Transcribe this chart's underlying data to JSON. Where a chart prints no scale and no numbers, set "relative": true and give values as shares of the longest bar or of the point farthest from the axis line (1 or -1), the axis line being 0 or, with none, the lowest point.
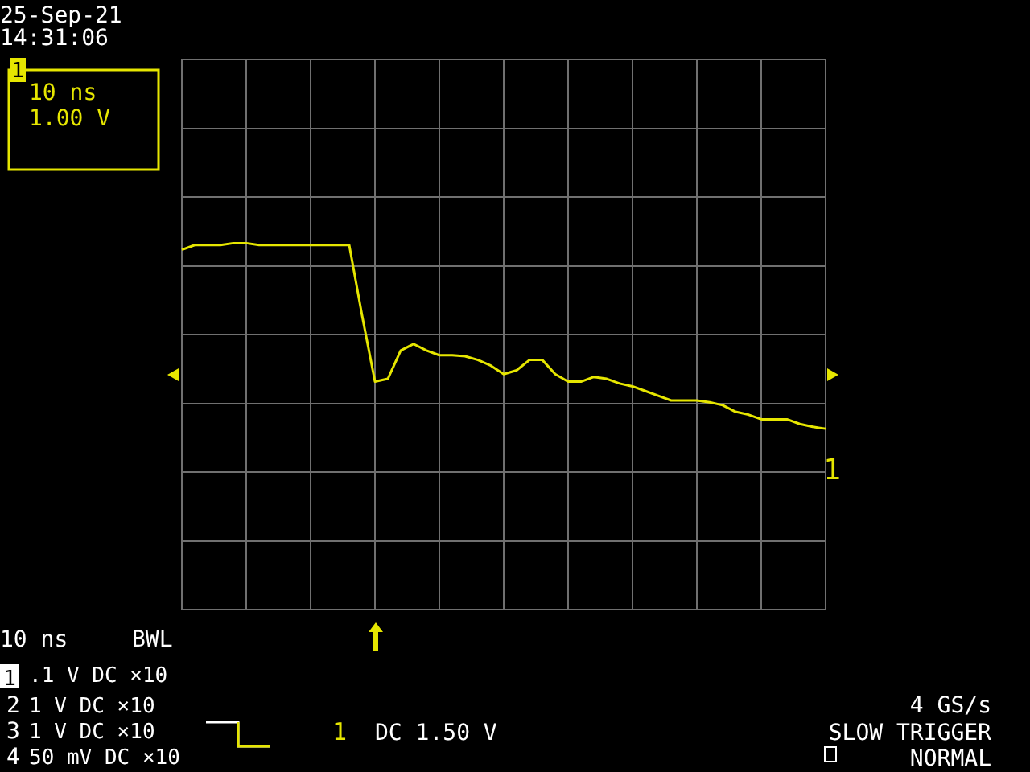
{
  "chart_data": {
    "type": "line",
    "relative": true,
    "grid": true,
    "tick_labels": false,
    "marker": "none",
    "legend": false,
    "categories": [
      null,
      null,
      null,
      null,
      null,
      null,
      null,
      null,
      null,
      null,
      null,
      null,
      null,
      null,
      null,
      null,
      null,
      null,
      null,
      null,
      null,
      null,
      null,
      null,
      null,
      null,
      null,
      null,
      null,
      null,
      null,
      null,
      null,
      null,
      null,
      null,
      null,
      null,
      null,
      null,
      null,
      null,
      null,
      null,
      null,
      null,
      null,
      null,
      null,
      null,
      null
    ],
    "series": [
      {
        "color": "#e6e600",
        "values": [
          0.9,
          0.95,
          0.95,
          0.95,
          0.97,
          0.97,
          0.95,
          0.95,
          0.95,
          0.95,
          0.95,
          0.95,
          0.95,
          0.95,
          0.2,
          -0.5,
          -0.47,
          -0.17,
          -0.1,
          -0.17,
          -0.22,
          -0.22,
          -0.23,
          -0.27,
          -0.33,
          -0.42,
          -0.38,
          -0.27,
          -0.27,
          -0.42,
          -0.5,
          -0.5,
          -0.45,
          -0.47,
          -0.52,
          -0.55,
          -0.6,
          -0.65,
          -0.7,
          -0.7,
          -0.7,
          -0.72,
          -0.75,
          -0.82,
          -0.85,
          -0.9,
          -0.9,
          -0.9,
          -0.95,
          -0.98,
          -1
        ]
      }
    ],
    "annotations": [
      "25-Sep-21",
      "14:31:06",
      "1",
      "10 ns",
      "1.00 V",
      "10 ns",
      "BWL",
      "1",
      ".1 V DC ×10",
      "2",
      "1 V DC ×10",
      "3",
      "1 V DC ×10",
      "4",
      "50 mV DC ×10",
      "1",
      "DC 1.50 V",
      "4 GS/s",
      "SLOW TRIGGER",
      "NORMAL",
      "1"
    ]
  }
}
